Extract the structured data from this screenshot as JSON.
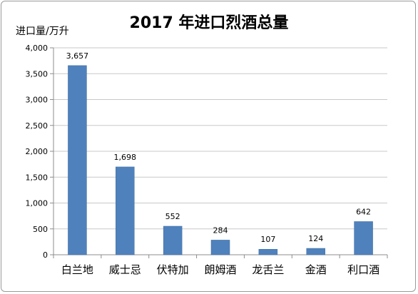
{
  "chart_data": {
    "type": "bar",
    "title": "2017 年进口烈酒总量",
    "ylabel": "进口量/万升",
    "xlabel": "",
    "categories": [
      "白兰地",
      "威士忌",
      "伏特加",
      "朗姆酒",
      "龙舌兰",
      "金酒",
      "利口酒"
    ],
    "values": [
      3657,
      1698,
      552,
      284,
      107,
      124,
      642
    ],
    "data_labels": [
      "3,657",
      "1,698",
      "552",
      "284",
      "107",
      "124",
      "642"
    ],
    "yticks": [
      0,
      500,
      1000,
      1500,
      2000,
      2500,
      3000,
      3500,
      4000
    ],
    "ytick_labels": [
      "0",
      "500",
      "1,000",
      "1,500",
      "2,000",
      "2,500",
      "3,000",
      "3,500",
      "4,000"
    ],
    "ylim": [
      0,
      4000
    ],
    "grid": true,
    "legend": "none",
    "bar_color": "#4f81bd"
  }
}
